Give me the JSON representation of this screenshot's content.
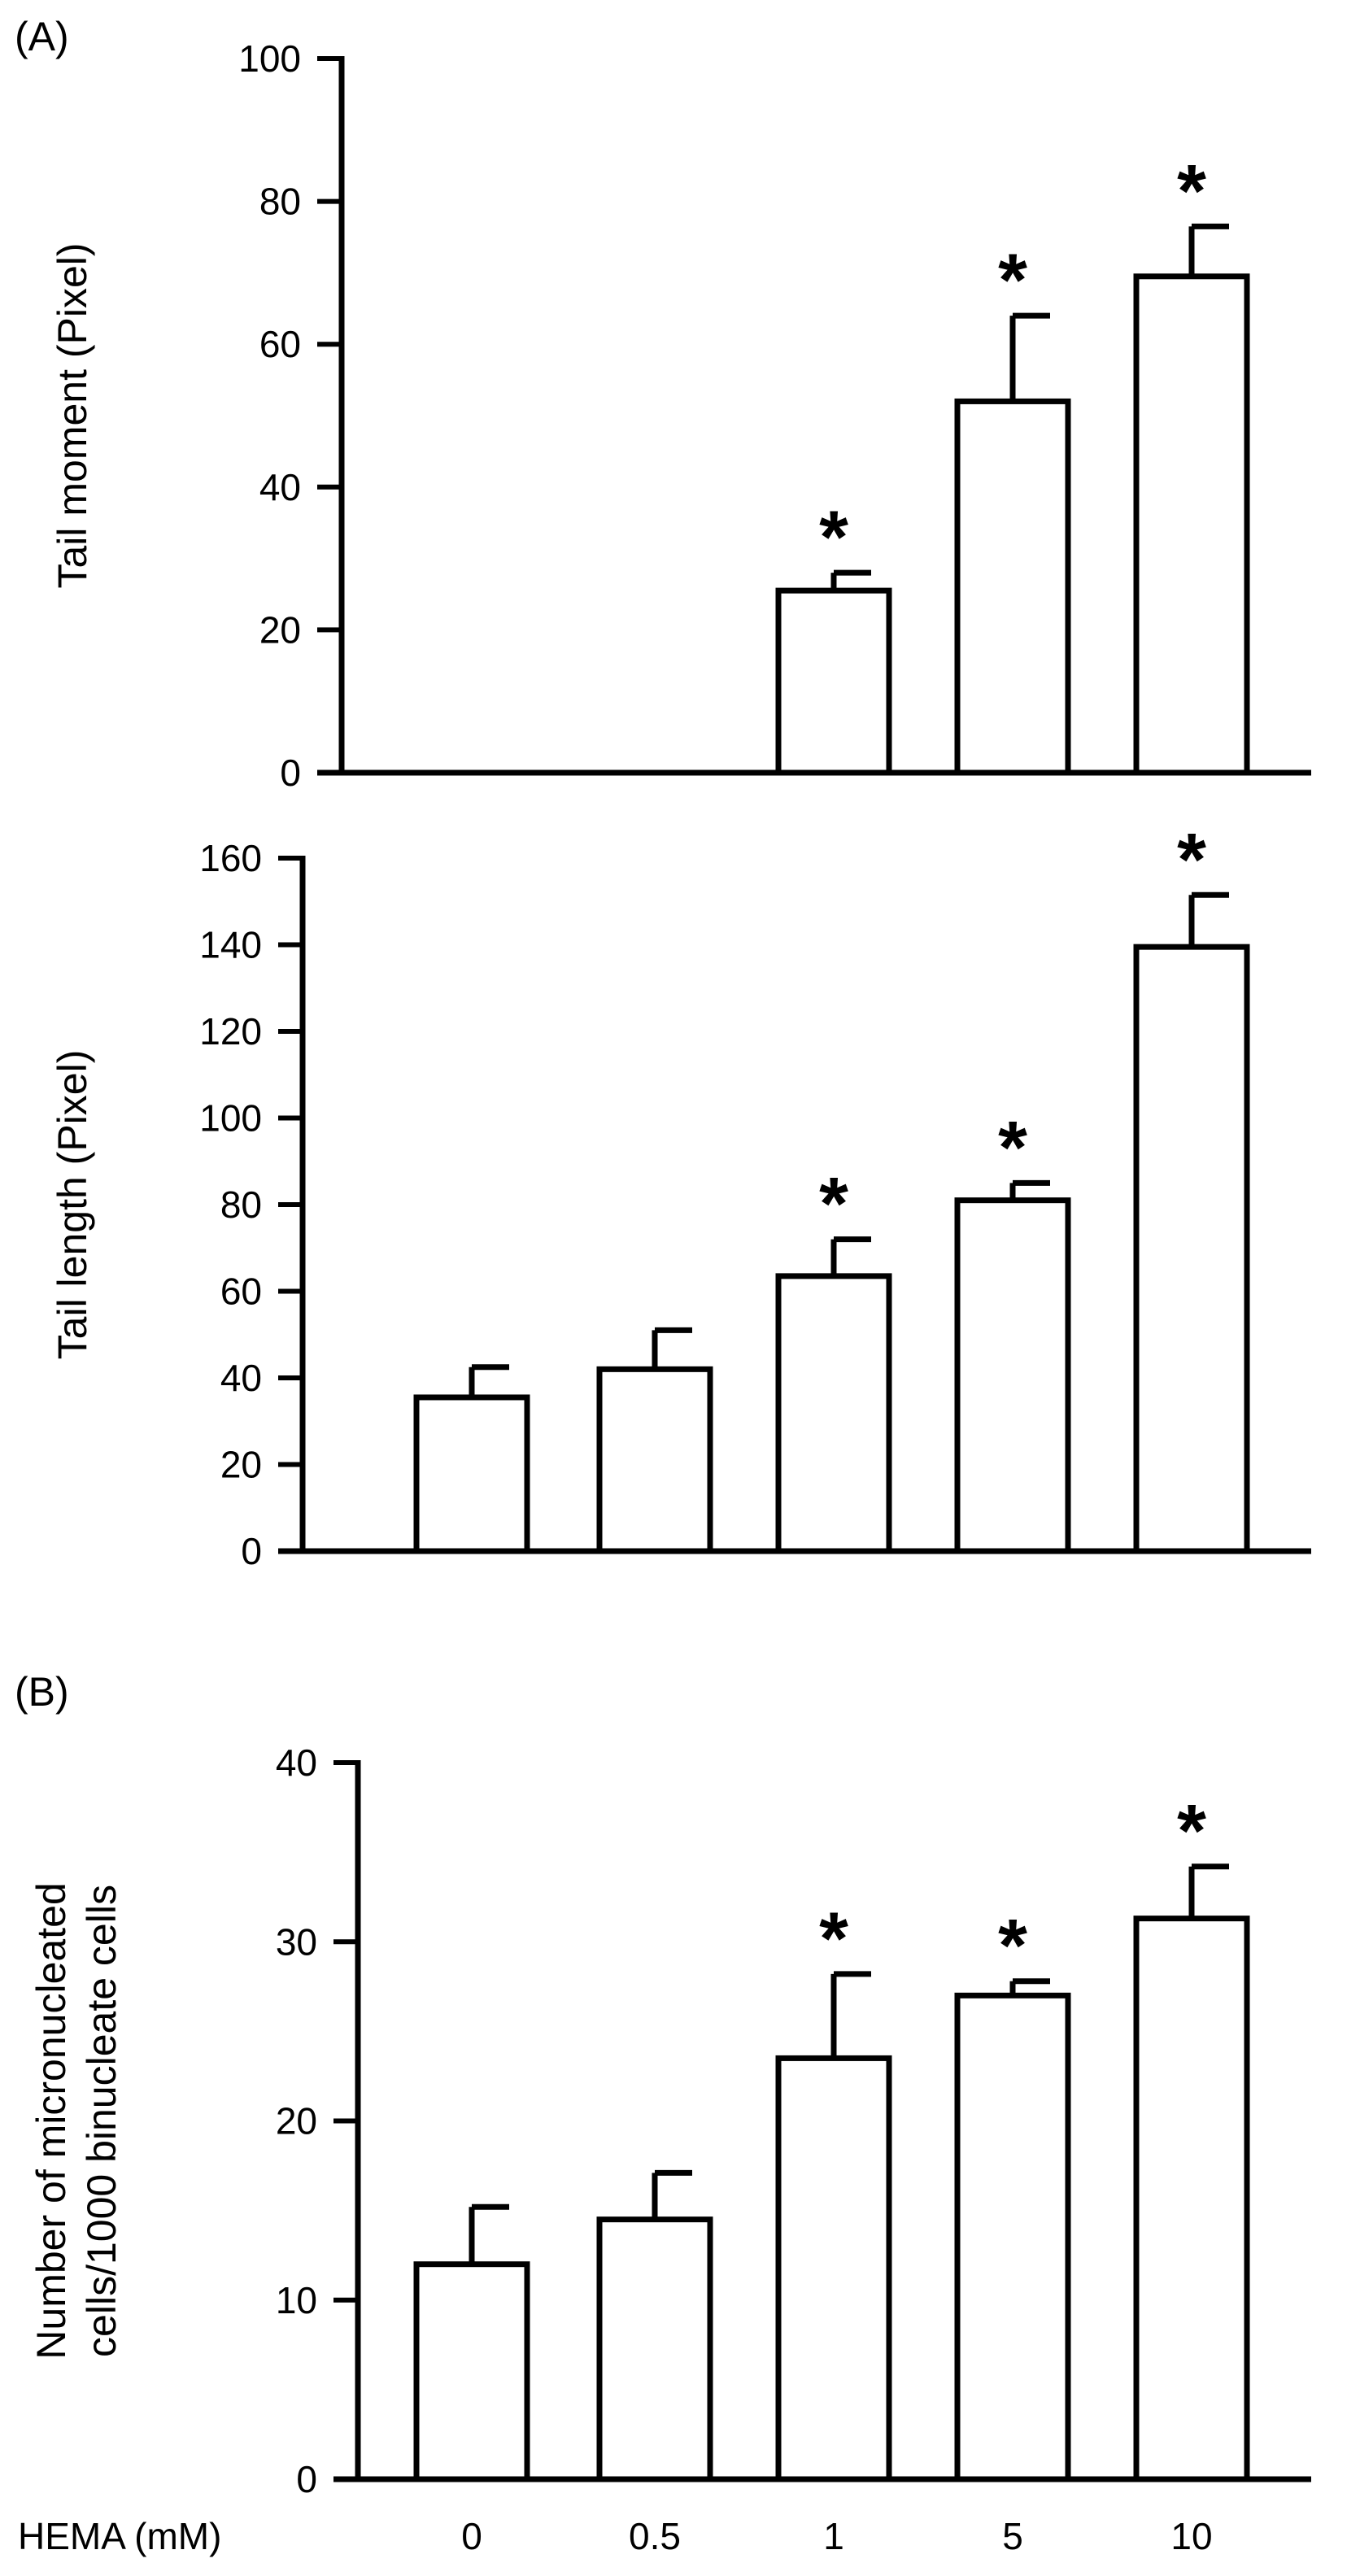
{
  "chart_data": [
    {
      "type": "bar",
      "panel_label": "(A)",
      "categories": [
        "0",
        "0.5",
        "1",
        "5",
        "10"
      ],
      "values": [
        0,
        0,
        25.5,
        52,
        69.5
      ],
      "errors": [
        0,
        0,
        2.5,
        12,
        7
      ],
      "significant": [
        false,
        false,
        true,
        true,
        true
      ],
      "significance_mark": "*",
      "ylabel": "Tail moment (Pixel)",
      "xlabel": "",
      "ylim": [
        0,
        100
      ],
      "yticks": [
        0,
        20,
        40,
        60,
        80,
        100
      ]
    },
    {
      "type": "bar",
      "panel_label": "",
      "categories": [
        "0",
        "0.5",
        "1",
        "5",
        "10"
      ],
      "values": [
        35.5,
        42,
        63.5,
        81,
        139.5
      ],
      "errors": [
        7,
        9,
        8.5,
        4,
        12
      ],
      "significant": [
        false,
        false,
        true,
        true,
        true
      ],
      "significance_mark": "*",
      "ylabel": "Tail length (Pixel)",
      "xlabel": "",
      "ylim": [
        0,
        160
      ],
      "yticks": [
        0,
        20,
        40,
        60,
        80,
        100,
        120,
        140,
        160
      ]
    },
    {
      "type": "bar",
      "panel_label": "(B)",
      "categories": [
        "0",
        "0.5",
        "1",
        "5",
        "10"
      ],
      "values": [
        12,
        14.5,
        23.5,
        27,
        31.3
      ],
      "errors": [
        3.2,
        2.6,
        4.7,
        0.8,
        2.9
      ],
      "significant": [
        false,
        false,
        true,
        true,
        true
      ],
      "significance_mark": "*",
      "ylabel_lines": [
        "Number of micronucleated",
        "cells/1000 binucleate cells"
      ],
      "xlabel": "HEMA (mM)",
      "ylim": [
        0,
        40
      ],
      "yticks": [
        0,
        10,
        20,
        30,
        40
      ]
    }
  ]
}
